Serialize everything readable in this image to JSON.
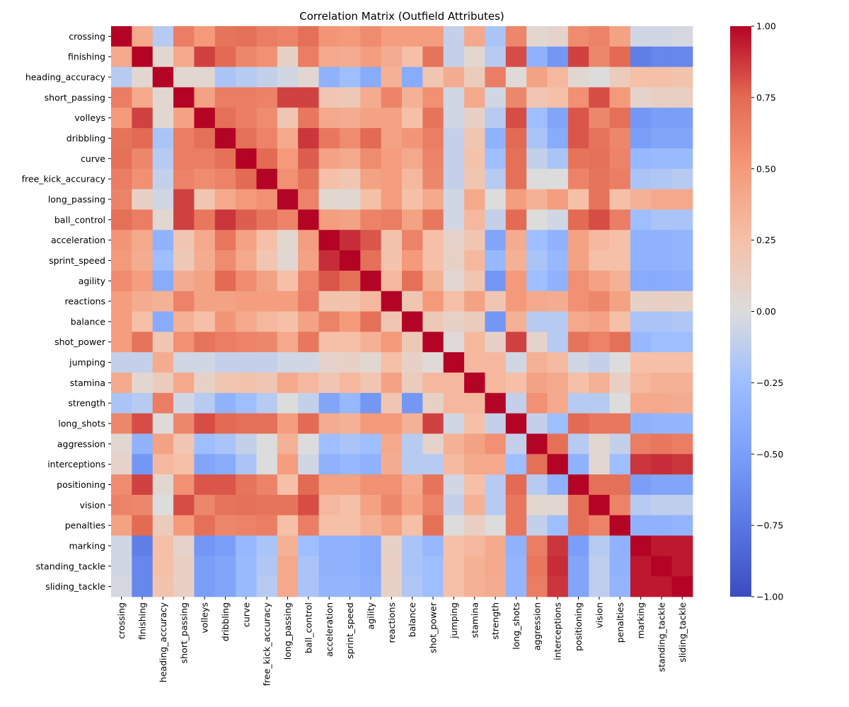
{
  "chart_data": {
    "type": "heatmap",
    "title": "Correlation Matrix (Outfield Attributes)",
    "xlabel": "",
    "ylabel": "",
    "labels": [
      "crossing",
      "finishing",
      "heading_accuracy",
      "short_passing",
      "volleys",
      "dribbling",
      "curve",
      "free_kick_accuracy",
      "long_passing",
      "ball_control",
      "acceleration",
      "sprint_speed",
      "agility",
      "reactions",
      "balance",
      "shot_power",
      "jumping",
      "stamina",
      "strength",
      "long_shots",
      "aggression",
      "interceptions",
      "positioning",
      "vision",
      "penalties",
      "marking",
      "standing_tackle",
      "sliding_tackle"
    ],
    "values": [
      [
        1.0,
        0.4,
        -0.15,
        0.65,
        0.5,
        0.7,
        0.72,
        0.65,
        0.62,
        0.72,
        0.52,
        0.5,
        0.58,
        0.48,
        0.48,
        0.48,
        -0.1,
        0.4,
        -0.2,
        0.6,
        0.05,
        0.08,
        0.58,
        0.62,
        0.45,
        -0.05,
        -0.05,
        -0.03
      ],
      [
        0.4,
        1.0,
        0.05,
        0.4,
        0.85,
        0.75,
        0.6,
        0.55,
        0.1,
        0.65,
        0.4,
        0.38,
        0.48,
        0.38,
        0.25,
        0.7,
        -0.1,
        0.05,
        -0.15,
        0.82,
        -0.35,
        -0.55,
        0.85,
        0.6,
        0.75,
        -0.7,
        -0.65,
        -0.65
      ],
      [
        -0.15,
        0.05,
        1.0,
        0.05,
        0.05,
        -0.2,
        -0.15,
        -0.1,
        -0.05,
        0.05,
        -0.35,
        -0.25,
        -0.4,
        0.35,
        -0.4,
        0.2,
        0.38,
        0.15,
        0.65,
        0.02,
        0.45,
        0.3,
        0.05,
        0.0,
        0.15,
        0.25,
        0.25,
        0.22
      ],
      [
        0.65,
        0.4,
        0.05,
        1.0,
        0.45,
        0.65,
        0.65,
        0.62,
        0.85,
        0.85,
        0.2,
        0.18,
        0.38,
        0.62,
        0.35,
        0.55,
        -0.05,
        0.4,
        -0.05,
        0.6,
        0.2,
        0.25,
        0.55,
        0.82,
        0.5,
        0.08,
        0.12,
        0.12
      ],
      [
        0.5,
        0.85,
        0.05,
        0.45,
        1.0,
        0.72,
        0.65,
        0.58,
        0.2,
        0.68,
        0.4,
        0.38,
        0.45,
        0.45,
        0.25,
        0.7,
        -0.05,
        0.1,
        -0.15,
        0.82,
        -0.25,
        -0.45,
        0.8,
        0.6,
        0.72,
        -0.55,
        -0.5,
        -0.5
      ],
      [
        0.7,
        0.75,
        -0.2,
        0.65,
        0.72,
        1.0,
        0.72,
        0.62,
        0.4,
        0.88,
        0.68,
        0.58,
        0.75,
        0.45,
        0.52,
        0.65,
        -0.1,
        0.2,
        -0.35,
        0.75,
        -0.2,
        -0.4,
        0.8,
        0.7,
        0.6,
        -0.5,
        -0.45,
        -0.45
      ],
      [
        0.72,
        0.6,
        -0.15,
        0.65,
        0.65,
        0.72,
        1.0,
        0.75,
        0.5,
        0.78,
        0.45,
        0.4,
        0.58,
        0.48,
        0.4,
        0.62,
        -0.1,
        0.22,
        -0.25,
        0.72,
        -0.1,
        -0.2,
        0.7,
        0.72,
        0.62,
        -0.3,
        -0.28,
        -0.28
      ],
      [
        0.65,
        0.55,
        -0.1,
        0.62,
        0.58,
        0.62,
        0.75,
        1.0,
        0.55,
        0.7,
        0.25,
        0.2,
        0.45,
        0.48,
        0.3,
        0.6,
        -0.1,
        0.2,
        -0.15,
        0.72,
        0.0,
        0.0,
        0.62,
        0.7,
        0.65,
        -0.2,
        -0.18,
        -0.15
      ],
      [
        0.62,
        0.1,
        -0.05,
        0.85,
        0.2,
        0.4,
        0.5,
        0.55,
        1.0,
        0.62,
        0.05,
        0.05,
        0.25,
        0.48,
        0.25,
        0.4,
        -0.05,
        0.4,
        0.0,
        0.48,
        0.35,
        0.48,
        0.25,
        0.7,
        0.25,
        0.35,
        0.4,
        0.4
      ],
      [
        0.72,
        0.65,
        0.05,
        0.85,
        0.68,
        0.88,
        0.78,
        0.7,
        0.62,
        1.0,
        0.48,
        0.45,
        0.62,
        0.65,
        0.45,
        0.68,
        -0.05,
        0.3,
        -0.1,
        0.75,
        0.0,
        -0.05,
        0.75,
        0.82,
        0.65,
        -0.25,
        -0.2,
        -0.2
      ],
      [
        0.52,
        0.4,
        -0.35,
        0.2,
        0.4,
        0.68,
        0.45,
        0.25,
        0.05,
        0.48,
        1.0,
        0.9,
        0.8,
        0.22,
        0.62,
        0.25,
        0.08,
        0.2,
        -0.45,
        0.38,
        -0.25,
        -0.35,
        0.45,
        0.3,
        0.25,
        -0.35,
        -0.35,
        -0.32
      ],
      [
        0.5,
        0.38,
        -0.25,
        0.18,
        0.38,
        0.58,
        0.4,
        0.2,
        0.05,
        0.45,
        0.9,
        1.0,
        0.72,
        0.22,
        0.5,
        0.25,
        0.1,
        0.3,
        -0.3,
        0.35,
        -0.2,
        -0.3,
        0.45,
        0.25,
        0.25,
        -0.35,
        -0.35,
        -0.32
      ],
      [
        0.58,
        0.48,
        -0.4,
        0.38,
        0.45,
        0.75,
        0.58,
        0.45,
        0.25,
        0.62,
        0.8,
        0.72,
        1.0,
        0.3,
        0.72,
        0.35,
        0.05,
        0.2,
        -0.55,
        0.5,
        -0.25,
        -0.35,
        0.55,
        0.45,
        0.35,
        -0.4,
        -0.4,
        -0.38
      ],
      [
        0.48,
        0.38,
        0.35,
        0.62,
        0.45,
        0.45,
        0.48,
        0.48,
        0.48,
        0.65,
        0.22,
        0.22,
        0.3,
        1.0,
        0.2,
        0.5,
        0.25,
        0.45,
        0.2,
        0.5,
        0.4,
        0.38,
        0.55,
        0.6,
        0.45,
        0.1,
        0.12,
        0.1
      ],
      [
        0.48,
        0.25,
        -0.4,
        0.35,
        0.25,
        0.52,
        0.4,
        0.3,
        0.25,
        0.45,
        0.62,
        0.5,
        0.72,
        0.2,
        1.0,
        0.18,
        0.1,
        0.15,
        -0.55,
        0.35,
        -0.15,
        -0.15,
        0.4,
        0.45,
        0.25,
        -0.2,
        -0.2,
        -0.18
      ],
      [
        0.48,
        0.7,
        0.2,
        0.55,
        0.7,
        0.65,
        0.62,
        0.6,
        0.4,
        0.68,
        0.25,
        0.25,
        0.35,
        0.5,
        0.18,
        1.0,
        0.02,
        0.3,
        0.1,
        0.85,
        0.08,
        -0.15,
        0.7,
        0.62,
        0.72,
        -0.3,
        -0.25,
        -0.25
      ],
      [
        -0.1,
        -0.1,
        0.38,
        -0.05,
        -0.05,
        -0.1,
        -0.1,
        -0.1,
        -0.05,
        -0.05,
        0.08,
        0.1,
        0.05,
        0.25,
        0.1,
        0.02,
        1.0,
        0.3,
        0.3,
        -0.05,
        0.35,
        0.28,
        -0.05,
        -0.1,
        0.0,
        0.25,
        0.25,
        0.25
      ],
      [
        0.4,
        0.05,
        0.15,
        0.4,
        0.1,
        0.2,
        0.22,
        0.2,
        0.4,
        0.3,
        0.2,
        0.3,
        0.2,
        0.45,
        0.15,
        0.3,
        0.3,
        1.0,
        0.3,
        0.25,
        0.45,
        0.4,
        0.25,
        0.35,
        0.12,
        0.3,
        0.35,
        0.35
      ],
      [
        -0.2,
        -0.15,
        0.65,
        -0.05,
        -0.15,
        -0.35,
        -0.25,
        -0.15,
        0.0,
        -0.1,
        -0.45,
        -0.3,
        -0.55,
        0.2,
        -0.55,
        0.1,
        0.3,
        0.3,
        1.0,
        -0.1,
        0.55,
        0.4,
        -0.15,
        -0.15,
        0.0,
        0.4,
        0.4,
        0.38
      ],
      [
        0.6,
        0.82,
        0.02,
        0.6,
        0.82,
        0.75,
        0.72,
        0.72,
        0.48,
        0.75,
        0.38,
        0.35,
        0.5,
        0.5,
        0.35,
        0.85,
        -0.05,
        0.25,
        -0.1,
        1.0,
        -0.1,
        -0.25,
        0.75,
        0.68,
        0.68,
        -0.35,
        -0.32,
        -0.32
      ],
      [
        0.05,
        -0.35,
        0.45,
        0.2,
        -0.25,
        -0.2,
        -0.1,
        0.0,
        0.35,
        0.0,
        -0.25,
        -0.2,
        -0.25,
        0.4,
        -0.15,
        0.08,
        0.35,
        0.45,
        0.55,
        -0.1,
        1.0,
        0.72,
        -0.15,
        0.05,
        -0.1,
        0.65,
        0.68,
        0.65
      ],
      [
        0.08,
        -0.55,
        0.3,
        0.25,
        -0.45,
        -0.4,
        -0.2,
        0.0,
        0.48,
        -0.05,
        -0.35,
        -0.3,
        -0.35,
        0.38,
        -0.15,
        -0.15,
        0.28,
        0.4,
        0.4,
        -0.25,
        0.72,
        1.0,
        -0.35,
        0.05,
        -0.25,
        0.88,
        0.9,
        0.88
      ],
      [
        0.58,
        0.85,
        0.05,
        0.55,
        0.8,
        0.8,
        0.7,
        0.62,
        0.25,
        0.75,
        0.45,
        0.45,
        0.55,
        0.55,
        0.4,
        0.7,
        -0.05,
        0.25,
        -0.15,
        0.75,
        -0.15,
        -0.35,
        1.0,
        0.72,
        0.72,
        -0.5,
        -0.45,
        -0.45
      ],
      [
        0.62,
        0.6,
        0.0,
        0.82,
        0.6,
        0.7,
        0.72,
        0.7,
        0.7,
        0.82,
        0.3,
        0.25,
        0.45,
        0.6,
        0.45,
        0.62,
        -0.1,
        0.35,
        -0.15,
        0.68,
        0.05,
        0.05,
        0.72,
        1.0,
        0.62,
        -0.15,
        -0.12,
        -0.12
      ],
      [
        0.45,
        0.75,
        0.15,
        0.5,
        0.72,
        0.6,
        0.62,
        0.65,
        0.25,
        0.65,
        0.25,
        0.25,
        0.35,
        0.45,
        0.25,
        0.72,
        0.0,
        0.12,
        0.0,
        0.68,
        -0.1,
        -0.25,
        0.72,
        0.62,
        1.0,
        -0.35,
        -0.35,
        -0.32
      ],
      [
        -0.05,
        -0.7,
        0.25,
        0.08,
        -0.55,
        -0.5,
        -0.3,
        -0.2,
        0.35,
        -0.25,
        -0.35,
        -0.35,
        -0.4,
        0.1,
        -0.2,
        -0.3,
        0.25,
        0.3,
        0.4,
        -0.35,
        0.65,
        0.88,
        -0.5,
        -0.15,
        -0.35,
        1.0,
        0.95,
        0.95
      ],
      [
        -0.05,
        -0.65,
        0.25,
        0.12,
        -0.5,
        -0.45,
        -0.28,
        -0.18,
        0.4,
        -0.2,
        -0.35,
        -0.35,
        -0.4,
        0.12,
        -0.2,
        -0.25,
        0.25,
        0.35,
        0.4,
        -0.32,
        0.68,
        0.9,
        -0.45,
        -0.12,
        -0.35,
        0.95,
        1.0,
        0.95
      ],
      [
        -0.03,
        -0.65,
        0.22,
        0.12,
        -0.5,
        -0.45,
        -0.28,
        -0.15,
        0.4,
        -0.2,
        -0.32,
        -0.32,
        -0.38,
        0.1,
        -0.18,
        -0.25,
        0.25,
        0.35,
        0.38,
        -0.32,
        0.65,
        0.88,
        -0.45,
        -0.12,
        -0.32,
        0.95,
        0.95,
        1.0
      ]
    ],
    "vmin": -1.0,
    "vmax": 1.0,
    "colormap": "coolwarm",
    "colorbar": {
      "ticks": [
        1.0,
        0.75,
        0.5,
        0.25,
        0.0,
        -0.25,
        -0.5,
        -0.75,
        -1.0
      ],
      "tick_labels": [
        "1.00",
        "0.75",
        "0.50",
        "0.25",
        "0.00",
        "−0.25",
        "−0.50",
        "−0.75",
        "−1.00"
      ]
    },
    "grid": false
  }
}
